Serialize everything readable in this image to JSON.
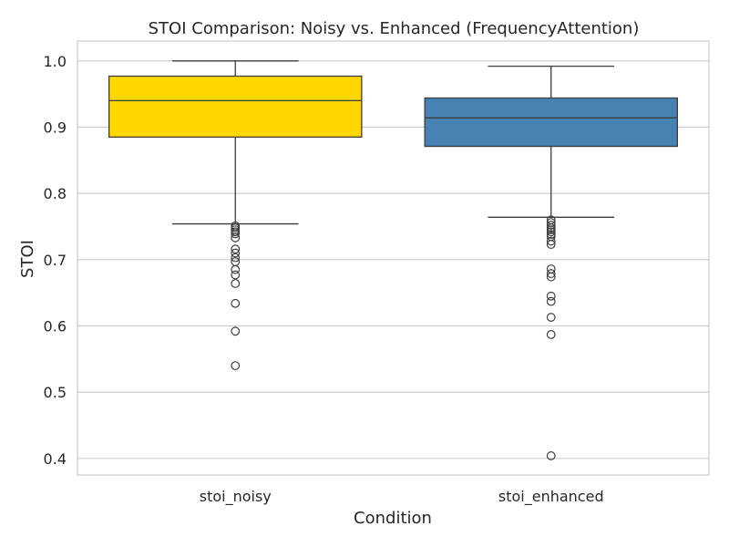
{
  "chart_data": {
    "type": "box",
    "title": "STOI Comparison: Noisy vs. Enhanced (FrequencyAttention)",
    "xlabel": "Condition",
    "ylabel": "STOI",
    "ylim": [
      0.375,
      1.03
    ],
    "yticks": [
      0.4,
      0.5,
      0.6,
      0.7,
      0.8,
      0.9,
      1.0
    ],
    "ytick_labels": [
      "0.4",
      "0.5",
      "0.6",
      "0.7",
      "0.8",
      "0.9",
      "1.0"
    ],
    "grid": true,
    "categories": [
      "stoi_noisy",
      "stoi_enhanced"
    ],
    "series": [
      {
        "category": "stoi_noisy",
        "color": "#ffd700",
        "whisker_low": 0.754,
        "q1": 0.885,
        "median": 0.94,
        "q3": 0.977,
        "whisker_high": 1.0,
        "outliers": [
          0.751,
          0.748,
          0.745,
          0.742,
          0.739,
          0.733,
          0.716,
          0.71,
          0.703,
          0.697,
          0.685,
          0.677,
          0.664,
          0.634,
          0.592,
          0.54
        ]
      },
      {
        "category": "stoi_enhanced",
        "color": "#4682b4",
        "whisker_low": 0.764,
        "q1": 0.871,
        "median": 0.914,
        "q3": 0.944,
        "whisker_high": 0.992,
        "outliers": [
          0.76,
          0.756,
          0.752,
          0.748,
          0.745,
          0.742,
          0.738,
          0.735,
          0.728,
          0.723,
          0.686,
          0.679,
          0.674,
          0.645,
          0.637,
          0.613,
          0.587,
          0.404
        ]
      }
    ]
  }
}
